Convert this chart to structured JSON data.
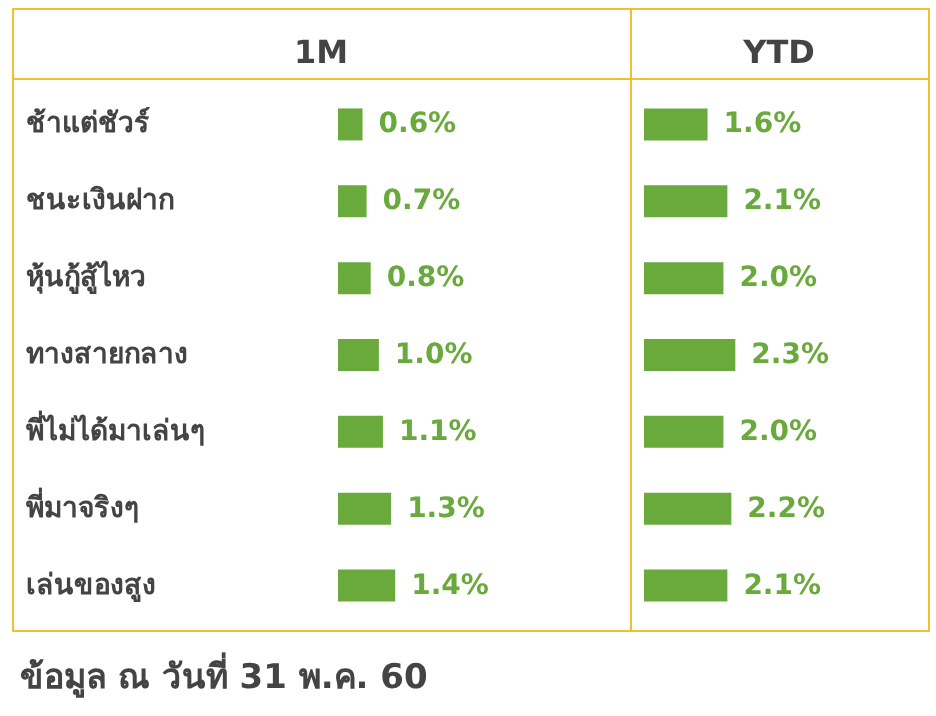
{
  "chart_data": [
    {
      "type": "bar",
      "orientation": "horizontal",
      "title": "1M",
      "categories": [
        "ช้าแต่ชัวร์",
        "ชนะเงินฝาก",
        "หุ้นกู้สู้ไหว",
        "ทางสายกลาง",
        "พี่ไม่ได้มาเล่นๆ",
        "พี่มาจริงๆ",
        "เล่นของสูง"
      ],
      "values": [
        0.6,
        0.7,
        0.8,
        1.0,
        1.1,
        1.3,
        1.4
      ],
      "value_labels": [
        "0.6%",
        "0.7%",
        "0.8%",
        "1.0%",
        "1.1%",
        "1.3%",
        "1.4%"
      ],
      "color": "#6aaa3c",
      "tick_labels": "y",
      "annotations": [
        "ข้อมูล ณ วันที่ 31 พ.ค. 60"
      ]
    },
    {
      "type": "bar",
      "orientation": "horizontal",
      "title": "YTD",
      "categories": [
        null,
        null,
        null,
        null,
        null,
        null,
        null
      ],
      "values": [
        1.6,
        2.1,
        2.0,
        2.3,
        2.0,
        2.2,
        2.1
      ],
      "value_labels": [
        "1.6%",
        "2.1%",
        "2.0%",
        "2.3%",
        "2.0%",
        "2.2%",
        "2.1%"
      ],
      "color": "#6aaa3c",
      "tick_labels": "y"
    }
  ]
}
